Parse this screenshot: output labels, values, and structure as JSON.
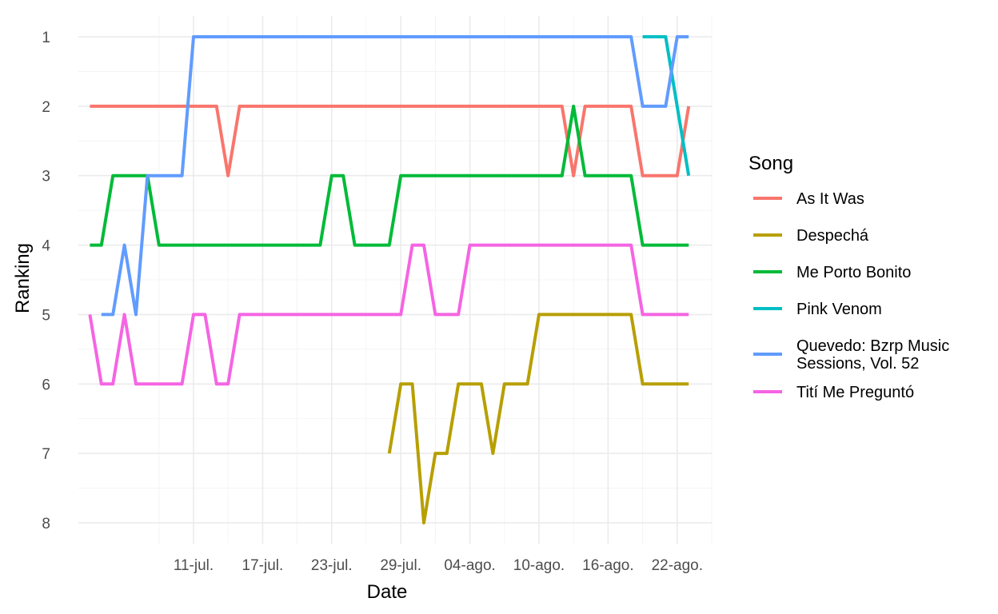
{
  "chart_data": {
    "type": "line",
    "xlabel": "Date",
    "ylabel": "Ranking",
    "y_reversed": true,
    "ylim": [
      8,
      1
    ],
    "yticks": [
      1,
      2,
      3,
      4,
      5,
      6,
      7,
      8
    ],
    "xlim": [
      "2022-07-01",
      "2022-08-25"
    ],
    "xticks": [
      {
        "date": "2022-07-11",
        "label": "11-jul."
      },
      {
        "date": "2022-07-17",
        "label": "17-jul."
      },
      {
        "date": "2022-07-23",
        "label": "23-jul."
      },
      {
        "date": "2022-07-29",
        "label": "29-jul."
      },
      {
        "date": "2022-08-04",
        "label": "04-ago."
      },
      {
        "date": "2022-08-10",
        "label": "10-ago."
      },
      {
        "date": "2022-08-16",
        "label": "16-ago."
      },
      {
        "date": "2022-08-22",
        "label": "22-ago."
      }
    ],
    "grid": true,
    "legend_position": "right",
    "legend_title": "Song",
    "series": [
      {
        "name": "As It Was",
        "color": "#F8766D",
        "points": [
          [
            "2022-07-02",
            2
          ],
          [
            "2022-07-10",
            2
          ],
          [
            "2022-07-11",
            2
          ],
          [
            "2022-07-12",
            2
          ],
          [
            "2022-07-13",
            2
          ],
          [
            "2022-07-14",
            3
          ],
          [
            "2022-07-15",
            2
          ],
          [
            "2022-07-20",
            2
          ],
          [
            "2022-07-27",
            2
          ],
          [
            "2022-08-03",
            2
          ],
          [
            "2022-08-10",
            2
          ],
          [
            "2022-08-12",
            2
          ],
          [
            "2022-08-13",
            3
          ],
          [
            "2022-08-14",
            2
          ],
          [
            "2022-08-16",
            2
          ],
          [
            "2022-08-18",
            2
          ],
          [
            "2022-08-19",
            3
          ],
          [
            "2022-08-20",
            3
          ],
          [
            "2022-08-21",
            3
          ],
          [
            "2022-08-22",
            3
          ],
          [
            "2022-08-23",
            2
          ]
        ]
      },
      {
        "name": "Despechá",
        "color": "#B79F00",
        "points": [
          [
            "2022-07-28",
            7
          ],
          [
            "2022-07-29",
            6
          ],
          [
            "2022-07-30",
            6
          ],
          [
            "2022-07-31",
            8
          ],
          [
            "2022-08-01",
            7
          ],
          [
            "2022-08-02",
            7
          ],
          [
            "2022-08-03",
            6
          ],
          [
            "2022-08-04",
            6
          ],
          [
            "2022-08-05",
            6
          ],
          [
            "2022-08-06",
            7
          ],
          [
            "2022-08-07",
            6
          ],
          [
            "2022-08-08",
            6
          ],
          [
            "2022-08-09",
            6
          ],
          [
            "2022-08-10",
            5
          ],
          [
            "2022-08-12",
            5
          ],
          [
            "2022-08-15",
            5
          ],
          [
            "2022-08-18",
            5
          ],
          [
            "2022-08-19",
            6
          ],
          [
            "2022-08-20",
            6
          ],
          [
            "2022-08-21",
            6
          ],
          [
            "2022-08-22",
            6
          ],
          [
            "2022-08-23",
            6
          ]
        ]
      },
      {
        "name": "Me Porto Bonito",
        "color": "#00BA38",
        "points": [
          [
            "2022-07-02",
            4
          ],
          [
            "2022-07-03",
            4
          ],
          [
            "2022-07-04",
            3
          ],
          [
            "2022-07-05",
            3
          ],
          [
            "2022-07-06",
            3
          ],
          [
            "2022-07-07",
            3
          ],
          [
            "2022-07-08",
            4
          ],
          [
            "2022-07-15",
            4
          ],
          [
            "2022-07-22",
            4
          ],
          [
            "2022-07-23",
            3
          ],
          [
            "2022-07-24",
            3
          ],
          [
            "2022-07-25",
            4
          ],
          [
            "2022-07-26",
            4
          ],
          [
            "2022-07-27",
            4
          ],
          [
            "2022-07-28",
            4
          ],
          [
            "2022-07-29",
            3
          ],
          [
            "2022-08-05",
            3
          ],
          [
            "2022-08-12",
            3
          ],
          [
            "2022-08-13",
            2
          ],
          [
            "2022-08-14",
            3
          ],
          [
            "2022-08-16",
            3
          ],
          [
            "2022-08-18",
            3
          ],
          [
            "2022-08-19",
            4
          ],
          [
            "2022-08-23",
            4
          ]
        ]
      },
      {
        "name": "Pink Venom",
        "color": "#00BFC4",
        "points": [
          [
            "2022-08-19",
            1
          ],
          [
            "2022-08-20",
            1
          ],
          [
            "2022-08-21",
            1
          ],
          [
            "2022-08-22",
            2
          ],
          [
            "2022-08-23",
            3
          ]
        ]
      },
      {
        "name": "Quevedo: Bzrp Music Sessions, Vol. 52",
        "legend_lines": [
          "Quevedo: Bzrp Music",
          "Sessions, Vol. 52"
        ],
        "color": "#619CFF",
        "points": [
          [
            "2022-07-03",
            5
          ],
          [
            "2022-07-04",
            5
          ],
          [
            "2022-07-05",
            4
          ],
          [
            "2022-07-06",
            5
          ],
          [
            "2022-07-07",
            3
          ],
          [
            "2022-07-08",
            3
          ],
          [
            "2022-07-09",
            3
          ],
          [
            "2022-07-10",
            3
          ],
          [
            "2022-07-11",
            1
          ],
          [
            "2022-07-20",
            1
          ],
          [
            "2022-07-30",
            1
          ],
          [
            "2022-08-09",
            1
          ],
          [
            "2022-08-18",
            1
          ],
          [
            "2022-08-19",
            2
          ],
          [
            "2022-08-20",
            2
          ],
          [
            "2022-08-21",
            2
          ],
          [
            "2022-08-22",
            1
          ],
          [
            "2022-08-23",
            1
          ]
        ]
      },
      {
        "name": "Tití Me Preguntó",
        "color": "#F564E3",
        "points": [
          [
            "2022-07-02",
            5
          ],
          [
            "2022-07-03",
            6
          ],
          [
            "2022-07-04",
            6
          ],
          [
            "2022-07-05",
            5
          ],
          [
            "2022-07-06",
            6
          ],
          [
            "2022-07-07",
            6
          ],
          [
            "2022-07-08",
            6
          ],
          [
            "2022-07-09",
            6
          ],
          [
            "2022-07-10",
            6
          ],
          [
            "2022-07-11",
            5
          ],
          [
            "2022-07-12",
            5
          ],
          [
            "2022-07-13",
            6
          ],
          [
            "2022-07-14",
            6
          ],
          [
            "2022-07-15",
            5
          ],
          [
            "2022-07-22",
            5
          ],
          [
            "2022-07-29",
            5
          ],
          [
            "2022-07-30",
            4
          ],
          [
            "2022-07-31",
            4
          ],
          [
            "2022-08-01",
            5
          ],
          [
            "2022-08-02",
            5
          ],
          [
            "2022-08-03",
            5
          ],
          [
            "2022-08-04",
            4
          ],
          [
            "2022-08-11",
            4
          ],
          [
            "2022-08-18",
            4
          ],
          [
            "2022-08-19",
            5
          ],
          [
            "2022-08-23",
            5
          ]
        ]
      }
    ]
  }
}
